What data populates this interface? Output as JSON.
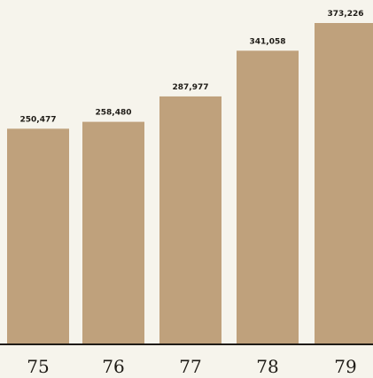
{
  "chart_data": {
    "type": "bar",
    "categories": [
      "75",
      "76",
      "77",
      "78",
      "79"
    ],
    "values": [
      250477,
      258480,
      287977,
      341058,
      373226
    ],
    "value_labels": [
      "250,477",
      "258,480",
      "287,977",
      "341,058",
      "373,226"
    ],
    "ylim": [
      0,
      373226
    ],
    "grid": false,
    "legend": "none",
    "colors": {
      "bar": "#bfa17c",
      "axis": "#1e1b16",
      "text": "#1e1b16",
      "background": "#f6f4ec"
    }
  }
}
